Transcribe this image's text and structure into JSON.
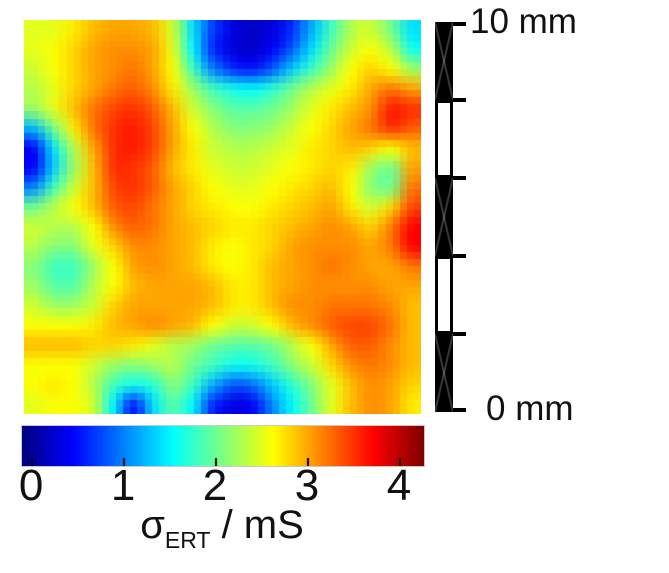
{
  "figure": {
    "background": "#ffffff",
    "text_color": "#111111",
    "scale_bar": {
      "top_label": "10 mm",
      "bottom_label": "0 mm",
      "bar_color": "#000000",
      "segments": [
        "black",
        "white",
        "black",
        "white",
        "black"
      ]
    },
    "axis_label": {
      "symbol": "σ",
      "subscript": "ERT",
      "unit": " / mS"
    }
  },
  "chart_data": {
    "type": "heatmap",
    "title": "",
    "xlabel": "",
    "ylabel": "",
    "value_label": "σ_ERT / mS",
    "colormap": "jet",
    "value_range": [
      -0.11,
      4.25
    ],
    "colorbar_ticks": [
      0,
      1,
      2,
      3,
      4
    ],
    "scale_bar_mm": {
      "min": 0,
      "max": 10
    },
    "grid_rows": 20,
    "grid_cols": 20,
    "grid": [
      [
        2.5,
        2.5,
        2.7,
        2.9,
        3.0,
        3.0,
        2.9,
        2.4,
        1.4,
        0.7,
        0.3,
        0.2,
        0.3,
        0.6,
        1.2,
        1.8,
        2.3,
        2.4,
        2.0,
        1.4
      ],
      [
        2.5,
        2.6,
        2.8,
        3.0,
        3.1,
        3.1,
        3.0,
        2.5,
        1.5,
        0.6,
        0.3,
        0.2,
        0.4,
        0.8,
        1.4,
        2.0,
        2.4,
        2.6,
        2.3,
        1.6
      ],
      [
        2.4,
        2.6,
        2.8,
        3.0,
        3.1,
        3.2,
        3.0,
        2.6,
        1.8,
        1.0,
        0.6,
        0.5,
        0.8,
        1.3,
        1.8,
        2.2,
        2.6,
        2.8,
        2.6,
        2.2
      ],
      [
        2.3,
        2.5,
        2.8,
        3.0,
        3.2,
        3.3,
        3.1,
        2.7,
        2.2,
        1.8,
        1.6,
        1.5,
        1.7,
        2.0,
        2.3,
        2.5,
        2.7,
        3.0,
        3.2,
        3.0
      ],
      [
        2.2,
        2.5,
        2.9,
        3.2,
        3.4,
        3.5,
        3.3,
        2.9,
        2.4,
        2.1,
        1.9,
        1.9,
        2.0,
        2.2,
        2.5,
        2.7,
        2.9,
        3.1,
        3.6,
        3.5
      ],
      [
        1.2,
        2.0,
        2.7,
        3.2,
        3.5,
        3.6,
        3.4,
        3.0,
        2.6,
        2.3,
        2.1,
        2.1,
        2.2,
        2.4,
        2.6,
        2.8,
        3.0,
        3.2,
        3.5,
        3.3
      ],
      [
        0.4,
        1.4,
        2.3,
        3.0,
        3.5,
        3.6,
        3.4,
        3.0,
        2.7,
        2.4,
        2.3,
        2.3,
        2.4,
        2.5,
        2.7,
        2.8,
        2.9,
        2.8,
        2.6,
        2.9
      ],
      [
        0.4,
        1.3,
        2.2,
        2.9,
        3.5,
        3.5,
        3.3,
        2.9,
        2.7,
        2.5,
        2.4,
        2.4,
        2.5,
        2.6,
        2.7,
        2.8,
        2.7,
        2.2,
        2.0,
        3.0
      ],
      [
        1.0,
        1.8,
        2.4,
        2.9,
        3.4,
        3.5,
        3.3,
        3.0,
        2.8,
        2.6,
        2.5,
        2.5,
        2.6,
        2.7,
        2.8,
        2.9,
        2.6,
        2.1,
        2.0,
        3.2
      ],
      [
        2.0,
        2.3,
        2.6,
        2.9,
        3.3,
        3.4,
        3.2,
        3.0,
        2.8,
        2.7,
        2.6,
        2.6,
        2.7,
        2.8,
        2.9,
        3.0,
        2.7,
        2.4,
        2.8,
        3.4
      ],
      [
        2.4,
        2.3,
        2.3,
        2.6,
        3.1,
        3.3,
        3.2,
        3.0,
        2.9,
        2.8,
        2.7,
        2.7,
        2.8,
        2.9,
        3.0,
        3.1,
        3.0,
        2.8,
        3.2,
        3.7
      ],
      [
        2.3,
        2.1,
        2.1,
        2.5,
        2.8,
        3.1,
        3.1,
        3.0,
        2.9,
        2.7,
        2.6,
        2.7,
        2.8,
        3.0,
        3.1,
        3.1,
        3.1,
        3.0,
        3.2,
        3.7
      ],
      [
        2.1,
        1.8,
        1.8,
        2.2,
        2.6,
        3.0,
        3.1,
        3.0,
        2.9,
        2.7,
        2.6,
        2.7,
        2.9,
        3.0,
        3.1,
        3.2,
        3.1,
        3.0,
        3.0,
        3.2
      ],
      [
        2.2,
        1.9,
        1.9,
        2.3,
        2.6,
        2.9,
        3.0,
        3.0,
        3.0,
        2.9,
        2.7,
        2.7,
        2.9,
        3.0,
        3.1,
        3.1,
        3.1,
        3.1,
        3.0,
        3.0
      ],
      [
        2.4,
        2.2,
        2.2,
        2.4,
        2.8,
        3.0,
        3.0,
        3.0,
        3.0,
        2.9,
        2.7,
        2.7,
        2.9,
        3.1,
        3.1,
        3.2,
        3.2,
        3.2,
        3.1,
        2.9
      ],
      [
        2.6,
        2.6,
        2.6,
        2.7,
        2.9,
        3.0,
        3.1,
        3.0,
        2.9,
        2.6,
        2.4,
        2.4,
        2.6,
        2.9,
        3.1,
        3.3,
        3.4,
        3.4,
        3.2,
        2.9
      ],
      [
        2.9,
        2.9,
        2.9,
        2.8,
        2.8,
        2.7,
        2.5,
        2.3,
        2.2,
        2.0,
        1.9,
        1.9,
        2.0,
        2.3,
        2.6,
        3.0,
        3.3,
        3.3,
        3.1,
        2.9
      ],
      [
        2.6,
        2.6,
        2.6,
        2.4,
        2.2,
        2.1,
        2.2,
        2.3,
        2.0,
        1.8,
        1.6,
        1.6,
        1.8,
        2.1,
        2.4,
        2.8,
        3.1,
        3.2,
        3.1,
        2.9
      ],
      [
        2.6,
        2.7,
        2.6,
        2.3,
        1.8,
        1.6,
        1.7,
        2.1,
        1.8,
        1.2,
        0.8,
        0.9,
        1.3,
        1.7,
        2.1,
        2.5,
        2.9,
        3.1,
        3.0,
        2.8
      ],
      [
        2.5,
        2.6,
        2.6,
        2.4,
        1.5,
        0.5,
        1.4,
        1.9,
        1.5,
        0.6,
        0.3,
        0.4,
        1.0,
        1.5,
        2.0,
        2.5,
        2.9,
        3.1,
        3.0,
        2.7
      ]
    ]
  }
}
